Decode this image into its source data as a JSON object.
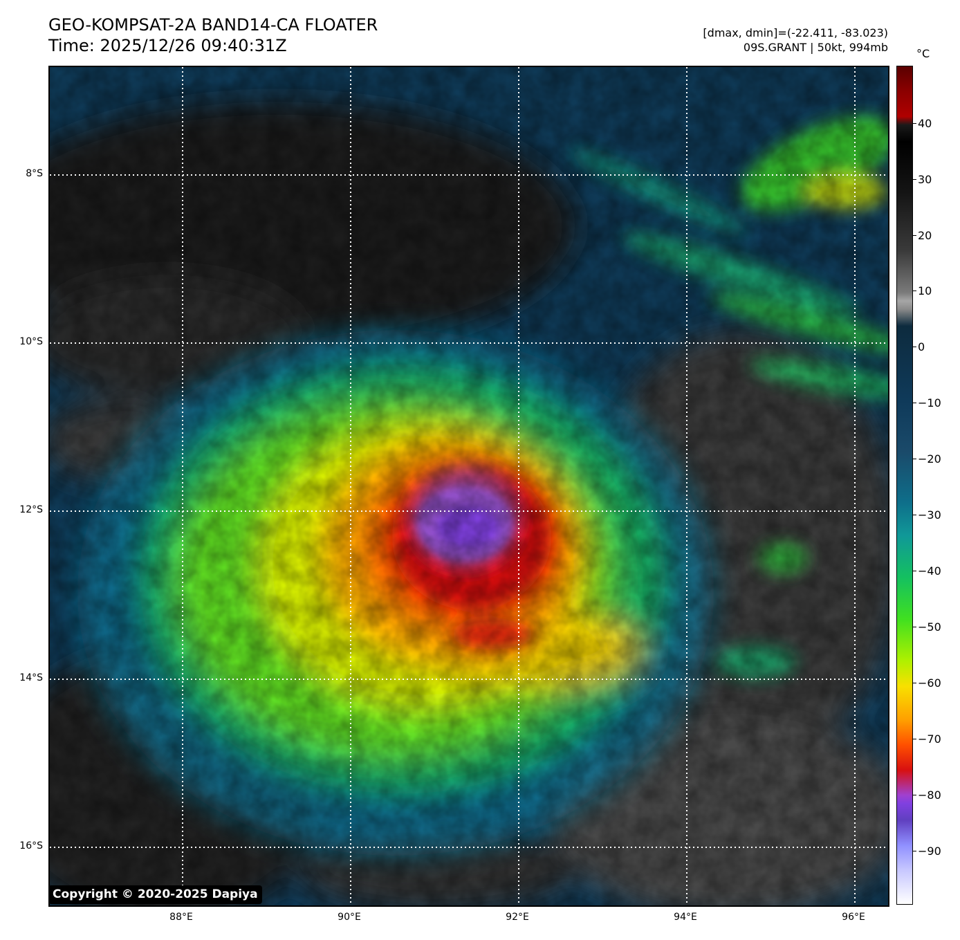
{
  "header": {
    "title_line1": "GEO-KOMPSAT-2A BAND14-CA FLOATER",
    "title_line2": "Time: 2025/12/26 09:40:31Z",
    "info_line1": "[dmax, dmin]=(-22.411, -83.023)",
    "info_line2": "09S.GRANT | 50kt, 994mb"
  },
  "map": {
    "lat_labels": [
      "8°S",
      "10°S",
      "12°S",
      "14°S",
      "16°S"
    ],
    "lon_labels": [
      "88°E",
      "90°E",
      "92°E",
      "94°E",
      "96°E"
    ]
  },
  "colorbar": {
    "unit": "°C",
    "ticks": [
      "40",
      "30",
      "20",
      "10",
      "0",
      "−10",
      "−20",
      "−30",
      "−40",
      "−50",
      "−60",
      "−70",
      "−80",
      "−90"
    ]
  },
  "copyright": "Copyright © 2020-2025 Dapiya",
  "colors": {
    "cold_top": "#8a50d8",
    "core": "#d01818",
    "ring": "#ffa000",
    "band": "#40e020",
    "ocean_clear": "#0e3a58",
    "warm_land": "#222222"
  }
}
